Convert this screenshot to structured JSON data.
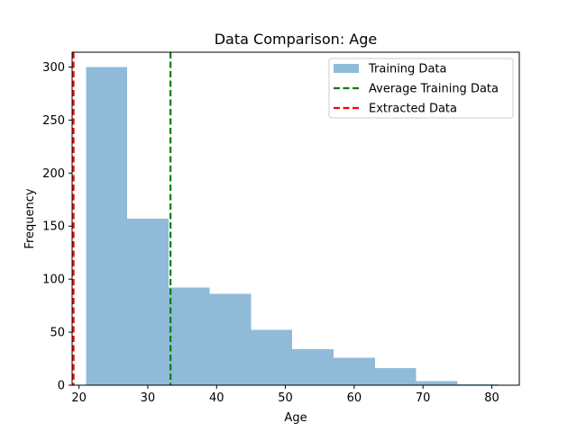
{
  "chart_data": {
    "type": "bar",
    "title": "Data Comparison: Age",
    "xlabel": "Age",
    "ylabel": "Frequency",
    "xlim": [
      19,
      84
    ],
    "ylim": [
      0,
      314
    ],
    "xticks": [
      20,
      30,
      40,
      50,
      60,
      70,
      80
    ],
    "yticks": [
      0,
      50,
      100,
      150,
      200,
      250,
      300
    ],
    "grid": false,
    "legend_position": "top-right",
    "histogram": {
      "name": "Training Data",
      "color": "#8fbbd9",
      "bins": [
        {
          "x0": 21,
          "x1": 27,
          "count": 300
        },
        {
          "x0": 27,
          "x1": 33,
          "count": 157
        },
        {
          "x0": 33,
          "x1": 39,
          "count": 92
        },
        {
          "x0": 39,
          "x1": 45,
          "count": 86
        },
        {
          "x0": 45,
          "x1": 51,
          "count": 52
        },
        {
          "x0": 51,
          "x1": 57,
          "count": 34
        },
        {
          "x0": 57,
          "x1": 63,
          "count": 26
        },
        {
          "x0": 63,
          "x1": 69,
          "count": 16
        },
        {
          "x0": 69,
          "x1": 75,
          "count": 4
        },
        {
          "x0": 75,
          "x1": 81,
          "count": 1
        }
      ]
    },
    "vlines": [
      {
        "name": "Average Training Data",
        "x": 33.3,
        "color": "#008000",
        "style": "dashed"
      },
      {
        "name": "Extracted Data",
        "x": 19.2,
        "color": "#ff0000",
        "style": "dashed"
      }
    ]
  }
}
